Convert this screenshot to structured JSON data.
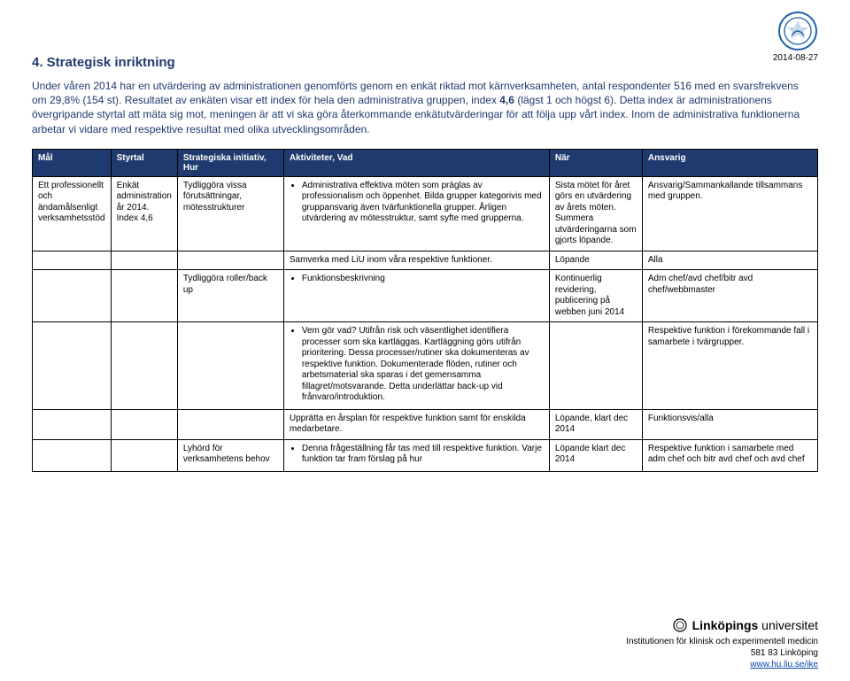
{
  "colors": {
    "header_bg": "#1f3a6e",
    "header_fg": "#ffffff",
    "title_color": "#1f3a6e",
    "text": "#000000",
    "link": "#0645ad",
    "seal_stroke": "#1f5faa",
    "seal_fill": "#ffffff"
  },
  "fonts": {
    "base_family": "Arial, Helvetica, sans-serif",
    "section_title_pt": 15,
    "intro_pt": 12,
    "table_pt": 10,
    "footer_pt": 10
  },
  "header": {
    "date": "2014-08-27"
  },
  "section": {
    "title": "4. Strategisk inriktning",
    "intro_html": "Under våren 2014 har en utvärdering av administrationen genomförts genom en enkät riktad mot kärnverksamheten, antal respondenter 516 med en svarsfrekvens om 29,8% (154 st). Resultatet av enkäten visar ett index för hela den administrativa gruppen, index <b>4,6</b> (lägst 1 och högst 6). Detta index är administrationens övergripande styrtal att mäta sig mot, meningen är att vi ska göra återkommande enkätutvärderingar för att följa upp vårt index. Inom de administrativa funktionerna arbetar vi vidare med respektive resultat med olika utvecklingsområden."
  },
  "table": {
    "columns": [
      "Mål",
      "Styrtal",
      "Strategiska initiativ, Hur",
      "Aktiviteter, Vad",
      "När",
      "Ansvarig"
    ],
    "rows": [
      {
        "mal": "Ett professionellt och ändamålsenligt verksamhetsstöd",
        "styrtal": "Enkät administration år 2014. Index 4,6",
        "strategi": "Tydliggöra vissa förutsättningar, mötesstrukturer",
        "aktiviteter": [
          "Administrativa effektiva möten som präglas av professionalism och öppenhet. Bilda grupper kategorivis med gruppansvarig även tvärfunktionella grupper. Årligen utvärdering av mötesstruktur, samt syfte med grupperna."
        ],
        "nar": "Sista mötet för året görs en utvärdering av årets möten. Summera utvärderingarna som gjorts löpande.",
        "ansvarig": "Ansvarig/Sammankallande tillsammans med gruppen."
      },
      {
        "mal": "",
        "styrtal": "",
        "strategi": "",
        "pretext": "Samverka med LiU inom våra respektive funktioner.",
        "aktiviteter": [],
        "nar": "Löpande",
        "ansvarig": "Alla"
      },
      {
        "mal": "",
        "styrtal": "",
        "strategi": "Tydliggöra roller/back up",
        "aktiviteter": [
          "Funktionsbeskrivning"
        ],
        "nar": "Kontinuerlig revidering, publicering på webben juni 2014",
        "ansvarig": "Adm chef/avd chef/bitr avd chef/webbmaster"
      },
      {
        "mal": "",
        "styrtal": "",
        "strategi": "",
        "aktiviteter": [
          "Vem gör vad? Utifrån risk och väsentlighet identifiera processer som ska kartläggas. Kartläggning görs utifrån prioritering. Dessa processer/rutiner ska dokumenteras av respektive funktion. Dokumenterade flöden, rutiner och arbetsmaterial ska sparas i det gemensamma fillagret/motsvarande. Detta underlättar back-up vid frånvaro/introduktion."
        ],
        "nar": "",
        "ansvarig": "Respektive funktion i förekommande fall i samarbete i tvärgrupper."
      },
      {
        "mal": "",
        "styrtal": "",
        "strategi": "",
        "pretext": "Upprätta en årsplan för respektive funktion samt för enskilda medarbetare.",
        "aktiviteter": [],
        "nar": "Löpande, klart dec 2014",
        "ansvarig": "Funktionsvis/alla"
      },
      {
        "mal": "",
        "styrtal": "",
        "strategi": "Lyhörd för verksamhetens behov",
        "aktiviteter": [
          "Denna frågeställning får tas med till respektive funktion. Varje funktion tar fram förslag på hur"
        ],
        "nar": "Löpande klart dec 2014",
        "ansvarig": "Respektive funktion i samarbete med adm chef och bitr avd chef och avd chef"
      }
    ]
  },
  "footer": {
    "uni_bold": "Linköpings",
    "uni_rest": " universitet",
    "dept": "Institutionen för klinisk och experimentell medicin",
    "addr": "581 83 Linköping",
    "url": "www.hu.liu.se/ike"
  }
}
